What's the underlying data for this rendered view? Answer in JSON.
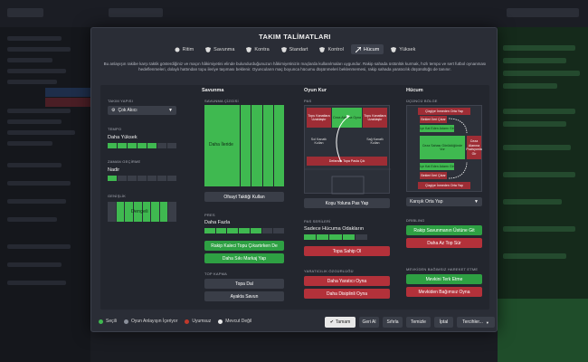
{
  "modal": {
    "title": "TAKIM TALİMATLARI",
    "tabs": [
      {
        "label": "Ritim",
        "icon": "tempo-icon"
      },
      {
        "label": "Savunma",
        "icon": "shield-icon"
      },
      {
        "label": "Kontra",
        "icon": "counter-icon"
      },
      {
        "label": "Standart",
        "icon": "setpiece-icon"
      },
      {
        "label": "Kontrol",
        "icon": "control-icon"
      },
      {
        "label": "Hücum",
        "icon": "attack-icon"
      },
      {
        "label": "Yüksek",
        "icon": "press-icon"
      }
    ],
    "active_tab": "Hücum",
    "description": "Bu anlayışın rakibe karşı taktik gösterdiğiniz ve maçın hâkimiyetini elinde bulundurduğunuzun hâkimiyetinizin maçlarda kullanılmaları uygundur. Rakip sahada üstünlük kurmak, hızlı tempo ve sert futbol oynanması hedeflenmeleri, dolaylı hattından topu ileriye taşıması beklenir. Oyuncuların maç boyunca hücumu düşünmeleri beklenmemesi, rakip sahada yaratıcılık düşünülüğü de tanınır."
  },
  "team": {
    "shape_label": "TAKIM YAPISI",
    "shape_value": "Çok Akıcı",
    "tempo_label": "TEMPO",
    "tempo_value": "Daha Yüksek",
    "tempo_level": 0.75,
    "timewasting_label": "ZAMAN GEÇİRME",
    "timewasting_value": "Nadir",
    "timewasting_level": 0.2,
    "width_label": "GENİŞLİK",
    "width_value": "Dengeli",
    "width_level": 0.6
  },
  "defence": {
    "header": "Savunma",
    "line_label": "SAVUNMA ÇİZGİSİ",
    "block_label": "Daha İleride",
    "offside_button": "Ofsayt Taktiği Kullan",
    "press_label": "PRES",
    "press_value": "Daha Fazla",
    "press_level": 0.7,
    "goalkeeper_button": "Rakip Kaleci Topu Çıkartırken De",
    "marking_button": "Daha Sıkı Markaj Yap",
    "tackling_label": "TOP KAPMA",
    "tackling_option1": "Topa Dal",
    "tackling_option2": "Ayakta Savun"
  },
  "buildup": {
    "header": "Oyun Kur",
    "pass_label": "PAS",
    "zones": {
      "left_top": "Topu Kanatlara Uzaklaştır",
      "center": "Ceza Alanına Oyna",
      "right_top": "Topu Kanatlara Uzaklaştır",
      "left_mid": "Sol Kanatlı Kullan",
      "right_mid": "Sağ Kanatlı Kullan",
      "bottom": "Defansta Topa Pasla Çık"
    },
    "pitch_button": "Koşu Yoluna Pas Yap",
    "final_third_label": "PAS SERİLERİ",
    "final_third_value": "Sadece Hücuma Odakların",
    "final_third_level": 0.6,
    "shoot_button": "Topa Sahip Ol",
    "creative_label": "YARATICILIK ÖZGÜRLÜĞÜ",
    "creative_btn1": "Daha Yaratıcı Oyna",
    "creative_btn2": "Daha Disiplinli Oyna"
  },
  "attack": {
    "header": "Hücum",
    "final_third_label": "ÜÇÜNCÜ BÖLGE",
    "zones": {
      "top": "Çizgiye İnmeden Orta Yap",
      "top2": "Bekleri İleri Çıkar",
      "left_wing": "İçe Kat Eden Adamı Gir",
      "center_box": "Ceza Sahası Görüldüğünde Vur",
      "right_wing": "Ceza Alanına Pozisyonla Gir",
      "bottom2": "Bekleri İleri Çıkar",
      "bottom": "Çizgiye İnmeden Orta Yap",
      "left_wing2": "İçe Kat Eden Adamı Gir"
    },
    "cross_dropdown": "Karışık Orta Yap",
    "dribble_label": "DRIBLING",
    "dribble_btn1": "Rakip Savunmanın Üstüne Git",
    "dribble_btn2": "Daha Az Top Sür",
    "movement_label": "MEVKİDEN BAĞIMSIZ HAREKET ETME",
    "movement_btn1": "Mevkini Terk Etme",
    "movement_btn2": "Mevkiden Bağımsız Oyna"
  },
  "legend": [
    {
      "label": "Seçili",
      "color": "#3fb950"
    },
    {
      "label": "Oyun Anlayışın İçeriyor",
      "color": "#8a8f9a"
    },
    {
      "label": "Uyumsuz",
      "color": "#c0392b"
    },
    {
      "label": "Mevcut Değil",
      "color": "#e8e8e8"
    }
  ],
  "footer": {
    "done_button": "Tamam",
    "undo_button": "Geri Al",
    "reset_button": "Sıfırla",
    "clear_button": "Temizle",
    "cancel_button": "İptal",
    "preferences_button": "Tercihler..."
  }
}
